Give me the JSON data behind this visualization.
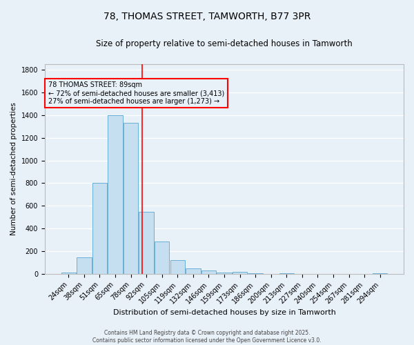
{
  "title1": "78, THOMAS STREET, TAMWORTH, B77 3PR",
  "title2": "Size of property relative to semi-detached houses in Tamworth",
  "xlabel": "Distribution of semi-detached houses by size in Tamworth",
  "ylabel": "Number of semi-detached properties",
  "categories": [
    "24sqm",
    "38sqm",
    "51sqm",
    "65sqm",
    "78sqm",
    "92sqm",
    "105sqm",
    "119sqm",
    "132sqm",
    "146sqm",
    "159sqm",
    "173sqm",
    "186sqm",
    "200sqm",
    "213sqm",
    "227sqm",
    "240sqm",
    "254sqm",
    "267sqm",
    "281sqm",
    "294sqm"
  ],
  "values": [
    15,
    150,
    800,
    1400,
    1330,
    550,
    285,
    120,
    50,
    30,
    15,
    20,
    10,
    0,
    10,
    0,
    0,
    0,
    0,
    0,
    8
  ],
  "bar_color": "#c5dff0",
  "bar_edge_color": "#6aafd6",
  "bg_color": "#e8f0f8",
  "grid_color": "#ffffff",
  "red_line_x": 4.72,
  "annotation_title": "78 THOMAS STREET: 89sqm",
  "annotation_line1": "← 72% of semi-detached houses are smaller (3,413)",
  "annotation_line2": "27% of semi-detached houses are larger (1,273) →",
  "footer1": "Contains HM Land Registry data © Crown copyright and database right 2025.",
  "footer2": "Contains public sector information licensed under the Open Government Licence v3.0.",
  "ylim": [
    0,
    1850
  ],
  "title1_fontsize": 10,
  "title2_fontsize": 8.5,
  "xlabel_fontsize": 8,
  "ylabel_fontsize": 7.5,
  "tick_fontsize": 7,
  "annot_fontsize": 7,
  "footer_fontsize": 5.5
}
